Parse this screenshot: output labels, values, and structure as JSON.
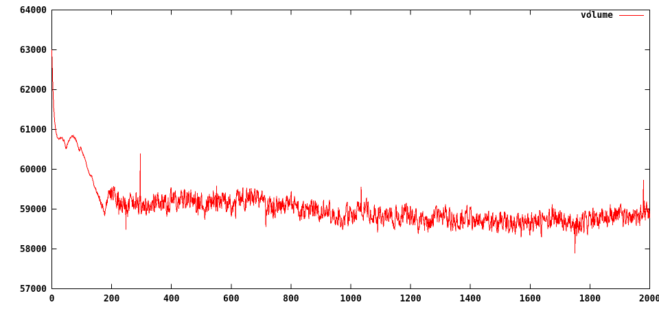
{
  "chart": {
    "background_color": "#ffffff",
    "border_color": "#000000",
    "text_color": "#000000",
    "legend": {
      "label": "volume",
      "line_color": "#ff0000",
      "position": "top-right-inside"
    },
    "axes": {
      "x": {
        "min": 0,
        "max": 2000,
        "tick_step": 200,
        "tick_values": [
          0,
          200,
          400,
          600,
          800,
          1000,
          1200,
          1400,
          1600,
          1800,
          2000
        ],
        "tick_labels": [
          "0",
          "200",
          "400",
          "600",
          "800",
          "1000",
          "1200",
          "1400",
          "1600",
          "1800",
          "2000"
        ]
      },
      "y": {
        "min": 57000,
        "max": 64000,
        "tick_step": 1000,
        "tick_values": [
          57000,
          58000,
          59000,
          60000,
          61000,
          62000,
          63000,
          64000
        ],
        "tick_labels": [
          "57000",
          "58000",
          "59000",
          "60000",
          "61000",
          "62000",
          "63000",
          "64000"
        ]
      }
    }
  },
  "chart_data": {
    "type": "line",
    "title": "",
    "xlabel": "",
    "ylabel": "",
    "xlim": [
      0,
      2000
    ],
    "ylim": [
      57000,
      64000
    ],
    "grid": false,
    "legend_position": "top-right",
    "series": [
      {
        "name": "volume",
        "color": "#ff0000",
        "description": "Noisy trace: starts ~63000 at x=0, drops fast to ~60800 by x=20, plateaus ~60700-60850 to x~85, declines to ~59000 by x~178, rebounds to ~59480 by x~205, then high-frequency noise (~±300) around a mean drifting from ~59150 down to ~58600 near x=1560, recovering to ~58950 by x=2000; isolated spikes up to 60400 (x~296) and 59730 (x~1979), dips to 57890 (x~1750).",
        "trend_points": [
          [
            0,
            63000
          ],
          [
            3,
            62150
          ],
          [
            6,
            61600
          ],
          [
            10,
            61150
          ],
          [
            14,
            60950
          ],
          [
            18,
            60820
          ],
          [
            25,
            60760
          ],
          [
            32,
            60800
          ],
          [
            40,
            60740
          ],
          [
            45,
            60600
          ],
          [
            49,
            60520
          ],
          [
            55,
            60700
          ],
          [
            62,
            60790
          ],
          [
            70,
            60830
          ],
          [
            78,
            60780
          ],
          [
            86,
            60620
          ],
          [
            92,
            60470
          ],
          [
            97,
            60560
          ],
          [
            102,
            60380
          ],
          [
            108,
            60300
          ],
          [
            114,
            60160
          ],
          [
            120,
            60010
          ],
          [
            126,
            59910
          ],
          [
            131,
            59830
          ],
          [
            136,
            59760
          ],
          [
            141,
            59620
          ],
          [
            147,
            59490
          ],
          [
            153,
            59390
          ],
          [
            160,
            59260
          ],
          [
            167,
            59130
          ],
          [
            173,
            59030
          ],
          [
            178,
            58990
          ],
          [
            184,
            59120
          ],
          [
            190,
            59260
          ],
          [
            197,
            59400
          ],
          [
            205,
            59480
          ],
          [
            212,
            59390
          ],
          [
            218,
            59270
          ],
          [
            225,
            59160
          ],
          [
            250,
            59100
          ],
          [
            270,
            59160
          ],
          [
            300,
            59200
          ],
          [
            330,
            59150
          ],
          [
            360,
            59110
          ],
          [
            400,
            59200
          ],
          [
            430,
            59300
          ],
          [
            460,
            59250
          ],
          [
            490,
            59160
          ],
          [
            510,
            59060
          ],
          [
            540,
            59160
          ],
          [
            570,
            59210
          ],
          [
            600,
            59160
          ],
          [
            630,
            59260
          ],
          [
            660,
            59300
          ],
          [
            690,
            59210
          ],
          [
            720,
            59060
          ],
          [
            750,
            59010
          ],
          [
            780,
            59060
          ],
          [
            810,
            59010
          ],
          [
            840,
            58960
          ],
          [
            870,
            59010
          ],
          [
            900,
            58960
          ],
          [
            930,
            58910
          ],
          [
            960,
            58860
          ],
          [
            990,
            58810
          ],
          [
            1020,
            58910
          ],
          [
            1050,
            58960
          ],
          [
            1080,
            58860
          ],
          [
            1110,
            58810
          ],
          [
            1140,
            58760
          ],
          [
            1170,
            58810
          ],
          [
            1200,
            58860
          ],
          [
            1230,
            58710
          ],
          [
            1260,
            58660
          ],
          [
            1290,
            58760
          ],
          [
            1320,
            58810
          ],
          [
            1350,
            58710
          ],
          [
            1380,
            58760
          ],
          [
            1410,
            58810
          ],
          [
            1440,
            58710
          ],
          [
            1470,
            58660
          ],
          [
            1500,
            58710
          ],
          [
            1530,
            58660
          ],
          [
            1560,
            58610
          ],
          [
            1590,
            58660
          ],
          [
            1620,
            58710
          ],
          [
            1650,
            58760
          ],
          [
            1680,
            58810
          ],
          [
            1710,
            58710
          ],
          [
            1740,
            58610
          ],
          [
            1770,
            58660
          ],
          [
            1800,
            58710
          ],
          [
            1830,
            58760
          ],
          [
            1860,
            58810
          ],
          [
            1890,
            58860
          ],
          [
            1920,
            58810
          ],
          [
            1950,
            58860
          ],
          [
            1975,
            58900
          ],
          [
            2000,
            58950
          ]
        ],
        "spikes": [
          [
            248,
            58480
          ],
          [
            296,
            60400
          ],
          [
            1035,
            59560
          ],
          [
            1750,
            57890
          ],
          [
            1979,
            59730
          ]
        ],
        "noise": {
          "seed": 20240607,
          "step": 1,
          "persistence": 0.45,
          "amp_ramp": [
            [
              0,
              25
            ],
            [
              140,
              35
            ],
            [
              220,
              230
            ],
            [
              2000,
              230
            ]
          ],
          "spike_prob": 0.02,
          "spike_gain": 2.1
        }
      }
    ]
  }
}
